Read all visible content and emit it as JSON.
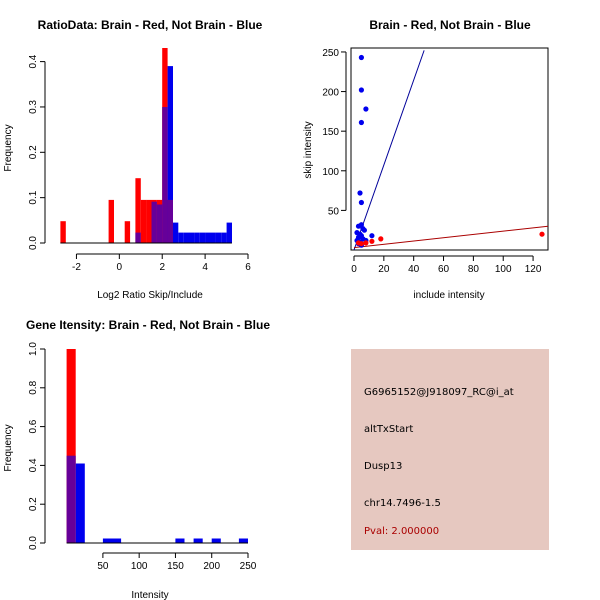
{
  "colors": {
    "red": "#ff0000",
    "blue": "#0000ee",
    "overlap": "#660099",
    "panel_bg": "#e6c8c0",
    "pval_color": "#aa0000",
    "line_red": "#aa0000",
    "line_blue": "#000099"
  },
  "info": {
    "probe": "G6965152@J918097_RC@i_at",
    "event": "altTxStart",
    "gene": "Dusp13",
    "location": "chr14.7496-1.5",
    "pval": "Pval: 2.000000"
  },
  "chart_data": [
    {
      "id": "ratio_hist",
      "type": "bar",
      "title": "RatioData: Brain - Red, Not Brain - Blue",
      "xlabel": "Log2 Ratio Skip/Include",
      "ylabel": "Frequency",
      "xlim": [
        -3,
        6
      ],
      "ylim": [
        0,
        0.43
      ],
      "xticks": [
        {
          "v": -2,
          "label": "-2"
        },
        {
          "v": 0,
          "label": "0"
        },
        {
          "v": 2,
          "label": "2"
        },
        {
          "v": 4,
          "label": "4"
        },
        {
          "v": 6,
          "label": "6"
        }
      ],
      "yticks": [
        {
          "v": 0,
          "label": "0.0"
        },
        {
          "v": 0.1,
          "label": "0.1"
        },
        {
          "v": 0.2,
          "label": "0.2"
        },
        {
          "v": 0.3,
          "label": "0.3"
        },
        {
          "v": 0.4,
          "label": "0.4"
        }
      ],
      "bin_width": 0.25,
      "series": [
        {
          "name": "Brain",
          "color": "red",
          "bins": [
            [
              -2.75,
              0.048
            ],
            [
              -0.5,
              0.095
            ],
            [
              0.25,
              0.048
            ],
            [
              0.75,
              0.143
            ],
            [
              1.0,
              0.095
            ],
            [
              1.25,
              0.095
            ],
            [
              1.5,
              0.095
            ],
            [
              1.75,
              0.095
            ],
            [
              2.0,
              0.43
            ],
            [
              2.25,
              0.095
            ]
          ]
        },
        {
          "name": "Not Brain",
          "color": "blue",
          "bins": [
            [
              0.75,
              0.023
            ],
            [
              1.5,
              0.091
            ],
            [
              1.75,
              0.085
            ],
            [
              2.0,
              0.3
            ],
            [
              2.25,
              0.39
            ],
            [
              2.5,
              0.045
            ],
            [
              2.75,
              0.023
            ],
            [
              3.0,
              0.023
            ],
            [
              3.25,
              0.023
            ],
            [
              3.5,
              0.023
            ],
            [
              3.75,
              0.023
            ],
            [
              4.0,
              0.023
            ],
            [
              4.25,
              0.023
            ],
            [
              4.5,
              0.023
            ],
            [
              4.75,
              0.023
            ],
            [
              5.0,
              0.045
            ]
          ]
        }
      ]
    },
    {
      "id": "scatter",
      "type": "scatter",
      "title": "Brain - Red, Not Brain - Blue",
      "xlabel": "include intensity",
      "ylabel": "skip intensity",
      "xlim": [
        -2,
        130
      ],
      "ylim": [
        0,
        255
      ],
      "xticks": [
        {
          "v": 0,
          "label": "0"
        },
        {
          "v": 20,
          "label": "20"
        },
        {
          "v": 40,
          "label": "40"
        },
        {
          "v": 60,
          "label": "60"
        },
        {
          "v": 80,
          "label": "80"
        },
        {
          "v": 100,
          "label": "100"
        },
        {
          "v": 120,
          "label": "120"
        }
      ],
      "yticks": [
        {
          "v": 50,
          "label": "50"
        },
        {
          "v": 100,
          "label": "100"
        },
        {
          "v": 150,
          "label": "150"
        },
        {
          "v": 200,
          "label": "200"
        },
        {
          "v": 250,
          "label": "250"
        }
      ],
      "series": [
        {
          "name": "Not Brain",
          "color": "blue",
          "points": [
            [
              5,
              243
            ],
            [
              5,
              202
            ],
            [
              8,
              178
            ],
            [
              5,
              161
            ],
            [
              4,
              72
            ],
            [
              5,
              60
            ],
            [
              3,
              30
            ],
            [
              5,
              32
            ],
            [
              6,
              27
            ],
            [
              7,
              25
            ],
            [
              2,
              22
            ],
            [
              4,
              20
            ],
            [
              3,
              16
            ],
            [
              5,
              18
            ],
            [
              12,
              18
            ],
            [
              2,
              12
            ],
            [
              4,
              10
            ],
            [
              6,
              14
            ],
            [
              8,
              12
            ],
            [
              3,
              8
            ],
            [
              5,
              6
            ]
          ]
        },
        {
          "name": "Brain",
          "color": "red",
          "points": [
            [
              126,
              20
            ],
            [
              18,
              14
            ],
            [
              12,
              11
            ],
            [
              8,
              9
            ],
            [
              5,
              8
            ],
            [
              3,
              9
            ]
          ]
        }
      ],
      "lines": [
        {
          "color": "line_blue",
          "from": [
            0,
            0
          ],
          "to": [
            47,
            252
          ]
        },
        {
          "color": "line_red",
          "from": [
            0,
            3
          ],
          "to": [
            130,
            30
          ]
        }
      ]
    },
    {
      "id": "intensity_hist",
      "type": "bar",
      "title": "Gene Itensity: Brain - Red, Not Brain - Blue",
      "xlabel": "Intensity",
      "ylabel": "Frequency",
      "xlim": [
        -16,
        250
      ],
      "ylim": [
        0,
        1.0
      ],
      "xticks": [
        {
          "v": 50,
          "label": "50"
        },
        {
          "v": 100,
          "label": "100"
        },
        {
          "v": 150,
          "label": "150"
        },
        {
          "v": 200,
          "label": "200"
        },
        {
          "v": 250,
          "label": "250"
        }
      ],
      "yticks": [
        {
          "v": 0,
          "label": "0.0"
        },
        {
          "v": 0.2,
          "label": "0.2"
        },
        {
          "v": 0.4,
          "label": "0.4"
        },
        {
          "v": 0.6,
          "label": "0.6"
        },
        {
          "v": 0.8,
          "label": "0.8"
        },
        {
          "v": 1.0,
          "label": "1.0"
        }
      ],
      "bin_width": 12.5,
      "series": [
        {
          "name": "Brain",
          "color": "red",
          "bins": [
            [
              0,
              1.0
            ]
          ]
        },
        {
          "name": "Not Brain",
          "color": "blue",
          "bins": [
            [
              0,
              0.45
            ],
            [
              12.5,
              0.41
            ],
            [
              50,
              0.023
            ],
            [
              62.5,
              0.023
            ],
            [
              150,
              0.023
            ],
            [
              175,
              0.023
            ],
            [
              200,
              0.023
            ],
            [
              237.5,
              0.023
            ]
          ]
        }
      ]
    }
  ]
}
